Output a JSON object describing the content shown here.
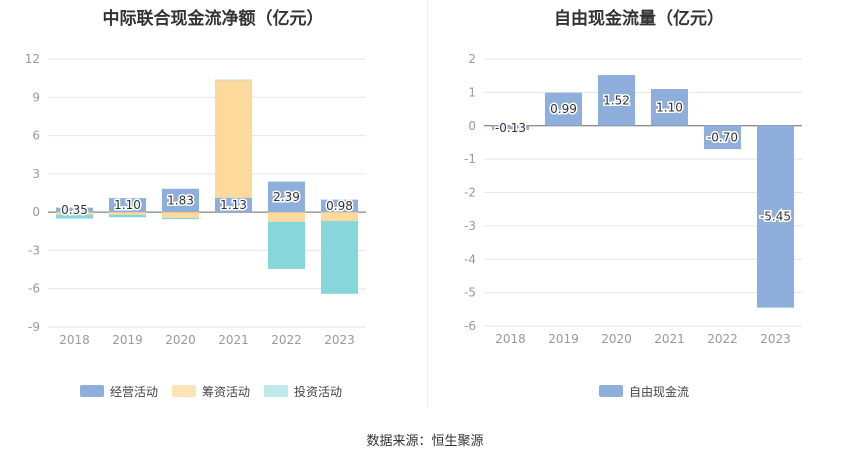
{
  "chart_data": [
    {
      "type": "bar",
      "stacked": true,
      "title": "中际联合现金流净额（亿元）",
      "categories": [
        "2018",
        "2019",
        "2020",
        "2021",
        "2022",
        "2023"
      ],
      "ylim": [
        -9,
        12
      ],
      "yticks": [
        -9,
        -6,
        -3,
        0,
        3,
        6,
        9,
        12
      ],
      "series": [
        {
          "name": "经营活动",
          "color": "#8eaedc",
          "values": [
            0.35,
            1.1,
            1.83,
            1.13,
            2.39,
            0.98
          ]
        },
        {
          "name": "筹资活动",
          "color": "#fdd99b",
          "values": [
            -0.2,
            -0.2,
            -0.45,
            9.2,
            -0.75,
            -0.7
          ]
        },
        {
          "name": "投资活动",
          "color": "#87d6da",
          "values": [
            -0.3,
            -0.2,
            -0.1,
            0.05,
            -3.7,
            -5.7
          ]
        }
      ],
      "data_labels": [
        "0.35",
        "1.10",
        "1.83",
        "1.13",
        "2.39",
        "0.98"
      ],
      "grid": true,
      "legend": "bottom"
    },
    {
      "type": "bar",
      "title": "自由现金流量（亿元）",
      "categories": [
        "2018",
        "2019",
        "2020",
        "2021",
        "2022",
        "2023"
      ],
      "ylim": [
        -6,
        2
      ],
      "yticks": [
        -6,
        -5,
        -4,
        -3,
        -2,
        -1,
        0,
        1,
        2
      ],
      "series": [
        {
          "name": "自由现金流",
          "color": "#8eaedc",
          "values": [
            -0.13,
            0.99,
            1.52,
            1.1,
            -0.7,
            -5.45
          ]
        }
      ],
      "data_labels": [
        "-0.13",
        "0.99",
        "1.52",
        "1.10",
        "-0.70",
        "-5.45"
      ],
      "grid": true,
      "legend": "bottom"
    }
  ],
  "source": "数据来源：恒生聚源"
}
